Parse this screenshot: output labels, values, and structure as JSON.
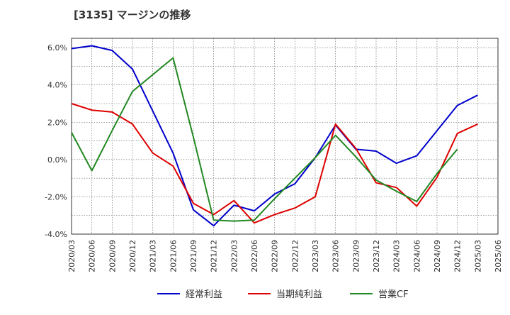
{
  "chart_data": {
    "type": "line",
    "title": "[3135]  マージンの推移",
    "xlabel": "",
    "ylabel": "",
    "ylim": [
      -4.0,
      6.5
    ],
    "yticks": [
      -4.0,
      -2.0,
      0.0,
      2.0,
      4.0,
      6.0
    ],
    "ytick_labels": [
      "-4.0%",
      "-2.0%",
      "0.0%",
      "2.0%",
      "4.0%",
      "6.0%"
    ],
    "x": [
      "2020/03",
      "2020/06",
      "2020/09",
      "2020/12",
      "2021/03",
      "2021/06",
      "2021/09",
      "2021/12",
      "2022/03",
      "2022/06",
      "2022/09",
      "2022/12",
      "2023/03",
      "2023/06",
      "2023/09",
      "2023/12",
      "2024/03",
      "2024/06",
      "2024/09",
      "2024/12",
      "2025/03",
      "2025/06"
    ],
    "grid": true,
    "legend_position": "bottom",
    "series": [
      {
        "name": "経常利益",
        "color": "#0000cc",
        "values": [
          5.95,
          6.1,
          5.85,
          4.85,
          2.6,
          0.35,
          -2.7,
          -3.55,
          -2.45,
          -2.75,
          -1.85,
          -1.3,
          0.1,
          1.85,
          0.55,
          0.45,
          -0.2,
          0.2,
          1.55,
          2.9,
          3.45,
          null
        ]
      },
      {
        "name": "当期純利益",
        "color": "#dd0000",
        "values": [
          3.0,
          2.65,
          2.55,
          1.9,
          0.35,
          -0.35,
          -2.35,
          -2.95,
          -2.2,
          -3.4,
          -2.95,
          -2.6,
          -2.0,
          1.9,
          0.6,
          -1.25,
          -1.5,
          -2.5,
          -0.95,
          1.4,
          1.9,
          null
        ]
      },
      {
        "name": "営業CF",
        "color": "#228822",
        "values": [
          1.45,
          -0.6,
          1.55,
          3.65,
          4.55,
          5.45,
          1.2,
          -3.25,
          -3.3,
          -3.25,
          -2.1,
          -1.0,
          0.1,
          1.3,
          0.15,
          -1.1,
          -1.7,
          -2.25,
          -0.75,
          0.55,
          null,
          null
        ]
      }
    ]
  }
}
